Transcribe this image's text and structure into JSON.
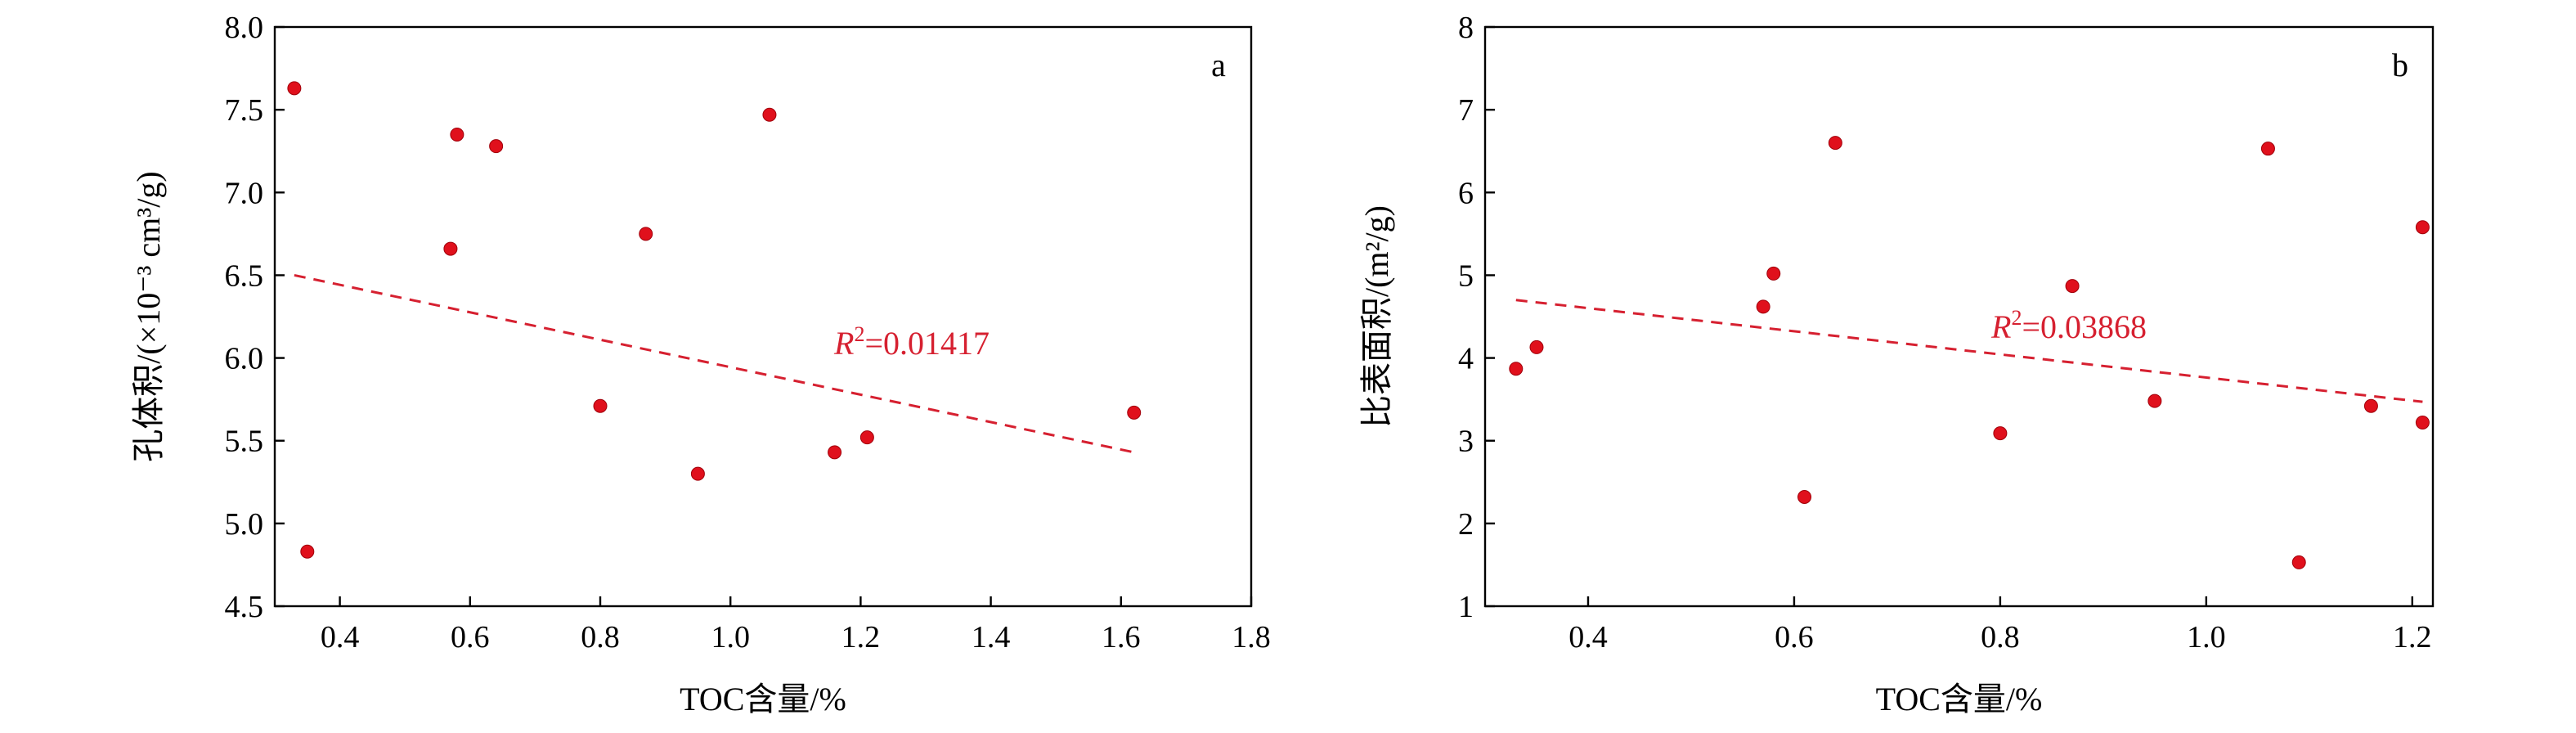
{
  "chart_data": [
    {
      "type": "scatter",
      "panel": "a",
      "xlabel": "TOC含量/%",
      "ylabel": "孔体积/(×10⁻³ cm³/g)",
      "xlim": [
        0.3,
        1.8
      ],
      "ylim": [
        4.5,
        8.0
      ],
      "xticks": [
        0.4,
        0.6,
        0.8,
        1.0,
        1.2,
        1.4,
        1.6,
        1.8
      ],
      "yticks": [
        4.5,
        5.0,
        5.5,
        6.0,
        6.5,
        7.0,
        7.5,
        8.0
      ],
      "xtick_labels": [
        "0.4",
        "0.6",
        "0.8",
        "1.0",
        "1.2",
        "1.4",
        "1.6",
        "1.8"
      ],
      "ytick_labels": [
        "4.5",
        "5.0",
        "5.5",
        "6.0",
        "6.5",
        "7.0",
        "7.5",
        "8.0"
      ],
      "points": [
        {
          "x": 0.33,
          "y": 7.63
        },
        {
          "x": 0.35,
          "y": 4.83
        },
        {
          "x": 0.57,
          "y": 6.66
        },
        {
          "x": 0.58,
          "y": 7.35
        },
        {
          "x": 0.64,
          "y": 7.28
        },
        {
          "x": 0.8,
          "y": 5.71
        },
        {
          "x": 0.87,
          "y": 6.75
        },
        {
          "x": 0.95,
          "y": 5.3
        },
        {
          "x": 1.06,
          "y": 7.47
        },
        {
          "x": 1.16,
          "y": 5.43
        },
        {
          "x": 1.21,
          "y": 5.52
        },
        {
          "x": 1.62,
          "y": 5.67
        }
      ],
      "fit": {
        "x": [
          0.33,
          1.62
        ],
        "y": [
          6.5,
          5.43
        ]
      },
      "r2_label": {
        "symbol": "R",
        "sup": "2",
        "value": "=0.01417"
      },
      "grid": false
    },
    {
      "type": "scatter",
      "panel": "b",
      "xlabel": "TOC含量/%",
      "ylabel": "比表面积/(m²/g)",
      "xlim": [
        0.3,
        1.22
      ],
      "ylim": [
        1,
        8
      ],
      "xticks": [
        0.4,
        0.6,
        0.8,
        1.0,
        1.2
      ],
      "yticks": [
        1,
        2,
        3,
        4,
        5,
        6,
        7,
        8
      ],
      "xtick_labels": [
        "0.4",
        "0.6",
        "0.8",
        "1.0",
        "1.2"
      ],
      "ytick_labels": [
        "1",
        "2",
        "3",
        "4",
        "5",
        "6",
        "7",
        "8"
      ],
      "points": [
        {
          "x": 0.33,
          "y": 3.87
        },
        {
          "x": 0.35,
          "y": 4.13
        },
        {
          "x": 0.57,
          "y": 4.62
        },
        {
          "x": 0.58,
          "y": 5.02
        },
        {
          "x": 0.61,
          "y": 2.32
        },
        {
          "x": 0.64,
          "y": 6.6
        },
        {
          "x": 0.8,
          "y": 3.09
        },
        {
          "x": 0.87,
          "y": 4.87
        },
        {
          "x": 0.95,
          "y": 3.48
        },
        {
          "x": 1.06,
          "y": 6.53
        },
        {
          "x": 1.09,
          "y": 1.53
        },
        {
          "x": 1.16,
          "y": 3.42
        },
        {
          "x": 1.21,
          "y": 3.22
        },
        {
          "x": 1.21,
          "y": 5.58
        }
      ],
      "fit": {
        "x": [
          0.33,
          1.21
        ],
        "y": [
          4.7,
          3.47
        ]
      },
      "r2_label": {
        "symbol": "R",
        "sup": "2",
        "value": "=0.03868"
      },
      "grid": false
    }
  ]
}
